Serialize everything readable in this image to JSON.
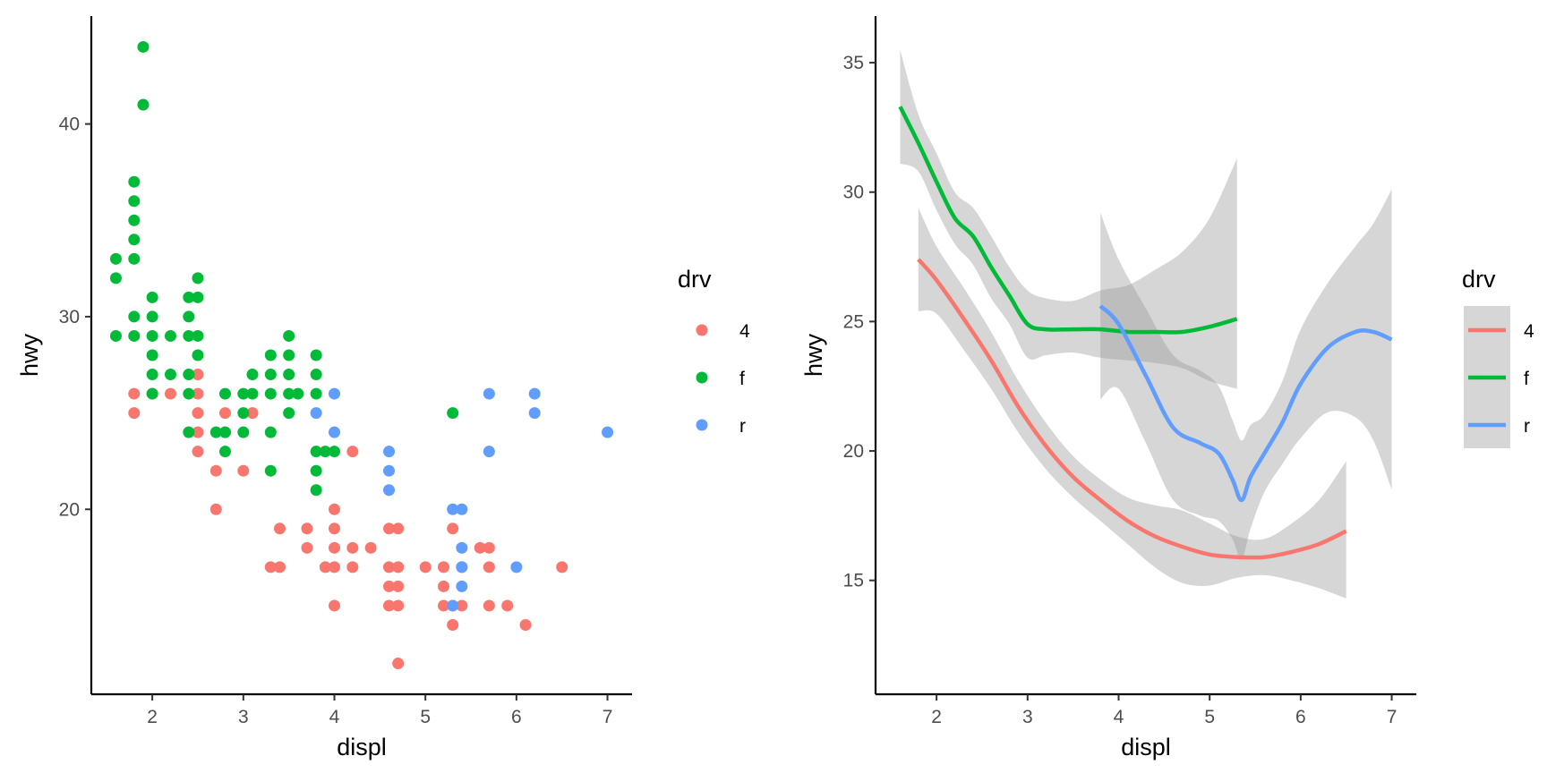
{
  "colors": {
    "4": "#F8766D",
    "f": "#00BA38",
    "r": "#619CFF",
    "band": "#999999"
  },
  "chart_data": [
    {
      "type": "scatter",
      "xlabel": "displ",
      "ylabel": "hwy",
      "xlim": [
        1.33,
        7.27
      ],
      "ylim": [
        10.4,
        45.6
      ],
      "xticks": [
        2,
        3,
        4,
        5,
        6,
        7
      ],
      "yticks": [
        20,
        30,
        40
      ],
      "legend": {
        "title": "drv",
        "placement": "right",
        "entries": [
          "4",
          "f",
          "r"
        ]
      },
      "series": [
        {
          "name": "4",
          "points": [
            [
              1.8,
              26
            ],
            [
              1.8,
              25
            ],
            [
              2.0,
              26
            ],
            [
              2.2,
              26
            ],
            [
              2.5,
              27
            ],
            [
              2.5,
              26
            ],
            [
              2.5,
              25
            ],
            [
              2.5,
              24
            ],
            [
              2.5,
              23
            ],
            [
              2.7,
              22
            ],
            [
              2.7,
              20
            ],
            [
              2.8,
              25
            ],
            [
              2.8,
              24
            ],
            [
              3.0,
              22
            ],
            [
              3.1,
              25
            ],
            [
              3.3,
              17
            ],
            [
              3.4,
              19
            ],
            [
              3.4,
              17
            ],
            [
              3.7,
              19
            ],
            [
              3.7,
              18
            ],
            [
              3.9,
              17
            ],
            [
              4.0,
              20
            ],
            [
              4.0,
              19
            ],
            [
              4.0,
              18
            ],
            [
              4.0,
              17
            ],
            [
              4.0,
              15
            ],
            [
              4.2,
              23
            ],
            [
              4.2,
              18
            ],
            [
              4.2,
              17
            ],
            [
              4.4,
              18
            ],
            [
              4.6,
              19
            ],
            [
              4.6,
              17
            ],
            [
              4.6,
              16
            ],
            [
              4.6,
              15
            ],
            [
              4.7,
              19
            ],
            [
              4.7,
              17
            ],
            [
              4.7,
              16
            ],
            [
              4.7,
              15
            ],
            [
              4.7,
              12
            ],
            [
              5.0,
              17
            ],
            [
              5.2,
              17
            ],
            [
              5.2,
              16
            ],
            [
              5.2,
              15
            ],
            [
              5.3,
              19
            ],
            [
              5.3,
              15
            ],
            [
              5.3,
              14
            ],
            [
              5.4,
              17
            ],
            [
              5.4,
              15
            ],
            [
              5.6,
              18
            ],
            [
              5.7,
              18
            ],
            [
              5.7,
              17
            ],
            [
              5.7,
              15
            ],
            [
              5.9,
              15
            ],
            [
              6.1,
              14
            ],
            [
              6.5,
              17
            ]
          ]
        },
        {
          "name": "f",
          "points": [
            [
              1.6,
              33
            ],
            [
              1.6,
              32
            ],
            [
              1.6,
              29
            ],
            [
              1.8,
              37
            ],
            [
              1.8,
              36
            ],
            [
              1.8,
              35
            ],
            [
              1.8,
              34
            ],
            [
              1.8,
              33
            ],
            [
              1.8,
              30
            ],
            [
              1.8,
              29
            ],
            [
              1.9,
              44
            ],
            [
              1.9,
              41
            ],
            [
              2.0,
              31
            ],
            [
              2.0,
              30
            ],
            [
              2.0,
              29
            ],
            [
              2.0,
              28
            ],
            [
              2.0,
              27
            ],
            [
              2.0,
              26
            ],
            [
              2.2,
              29
            ],
            [
              2.2,
              27
            ],
            [
              2.4,
              31
            ],
            [
              2.4,
              30
            ],
            [
              2.4,
              29
            ],
            [
              2.4,
              27
            ],
            [
              2.4,
              26
            ],
            [
              2.4,
              24
            ],
            [
              2.5,
              32
            ],
            [
              2.5,
              31
            ],
            [
              2.5,
              29
            ],
            [
              2.5,
              28
            ],
            [
              2.7,
              24
            ],
            [
              2.8,
              26
            ],
            [
              2.8,
              24
            ],
            [
              2.8,
              23
            ],
            [
              3.0,
              26
            ],
            [
              3.0,
              25
            ],
            [
              3.0,
              24
            ],
            [
              3.1,
              27
            ],
            [
              3.1,
              26
            ],
            [
              3.3,
              28
            ],
            [
              3.3,
              27
            ],
            [
              3.3,
              26
            ],
            [
              3.3,
              24
            ],
            [
              3.3,
              22
            ],
            [
              3.5,
              29
            ],
            [
              3.5,
              28
            ],
            [
              3.5,
              27
            ],
            [
              3.5,
              26
            ],
            [
              3.5,
              25
            ],
            [
              3.6,
              26
            ],
            [
              3.8,
              28
            ],
            [
              3.8,
              27
            ],
            [
              3.8,
              26
            ],
            [
              3.8,
              23
            ],
            [
              3.8,
              22
            ],
            [
              3.8,
              21
            ],
            [
              3.9,
              23
            ],
            [
              4.0,
              23
            ],
            [
              5.3,
              25
            ]
          ]
        },
        {
          "name": "r",
          "points": [
            [
              3.8,
              25
            ],
            [
              4.0,
              26
            ],
            [
              4.0,
              24
            ],
            [
              4.6,
              23
            ],
            [
              4.6,
              22
            ],
            [
              4.6,
              21
            ],
            [
              5.3,
              20
            ],
            [
              5.3,
              15
            ],
            [
              5.4,
              20
            ],
            [
              5.4,
              18
            ],
            [
              5.4,
              17
            ],
            [
              5.4,
              16
            ],
            [
              5.7,
              26
            ],
            [
              5.7,
              23
            ],
            [
              6.0,
              17
            ],
            [
              6.2,
              26
            ],
            [
              6.2,
              25
            ],
            [
              7.0,
              24
            ]
          ]
        }
      ]
    },
    {
      "type": "line",
      "xlabel": "displ",
      "ylabel": "hwy",
      "xlim": [
        1.33,
        7.27
      ],
      "ylim": [
        10.6,
        36.8
      ],
      "xticks": [
        2,
        3,
        4,
        5,
        6,
        7
      ],
      "yticks": [
        15,
        20,
        25,
        30,
        35
      ],
      "legend": {
        "title": "drv",
        "placement": "right",
        "entries": [
          "4",
          "f",
          "r"
        ]
      },
      "series": [
        {
          "name": "4",
          "x": [
            1.8,
            2.0,
            2.3,
            2.6,
            2.9,
            3.2,
            3.5,
            3.8,
            4.1,
            4.4,
            4.7,
            5.0,
            5.3,
            5.6,
            5.9,
            6.2,
            6.5
          ],
          "y": [
            27.4,
            26.6,
            25.1,
            23.5,
            21.7,
            20.2,
            19.0,
            18.1,
            17.3,
            16.7,
            16.3,
            16.0,
            15.9,
            15.9,
            16.1,
            16.4,
            16.9
          ],
          "lower": [
            25.4,
            25.3,
            23.9,
            22.4,
            20.7,
            19.3,
            18.2,
            17.3,
            16.4,
            15.5,
            14.9,
            14.8,
            15.1,
            15.2,
            15.0,
            14.7,
            14.3
          ],
          "upper": [
            29.4,
            27.9,
            26.3,
            24.6,
            22.7,
            21.1,
            19.8,
            18.9,
            18.2,
            17.9,
            17.7,
            17.2,
            16.7,
            16.6,
            17.2,
            18.1,
            19.6
          ]
        },
        {
          "name": "f",
          "x": [
            1.6,
            1.8,
            2.0,
            2.2,
            2.4,
            2.6,
            2.8,
            3.0,
            3.2,
            3.5,
            3.8,
            4.1,
            4.4,
            4.7,
            5.0,
            5.3
          ],
          "y": [
            33.3,
            31.9,
            30.4,
            29.0,
            28.3,
            27.1,
            26.0,
            24.9,
            24.7,
            24.7,
            24.7,
            24.6,
            24.6,
            24.6,
            24.8,
            25.1
          ],
          "lower": [
            31.1,
            30.8,
            29.3,
            28.0,
            27.2,
            25.9,
            24.9,
            23.6,
            23.7,
            23.8,
            23.6,
            23.5,
            23.4,
            23.2,
            22.7,
            22.4
          ],
          "upper": [
            35.5,
            33.0,
            31.5,
            30.0,
            29.4,
            28.3,
            27.1,
            26.2,
            25.9,
            25.8,
            26.2,
            26.4,
            27.0,
            27.7,
            29.0,
            31.3
          ]
        },
        {
          "name": "r",
          "x": [
            3.8,
            4.0,
            4.3,
            4.6,
            4.9,
            5.1,
            5.25,
            5.35,
            5.45,
            5.6,
            5.8,
            6.0,
            6.3,
            6.6,
            6.8,
            7.0
          ],
          "y": [
            25.6,
            24.9,
            22.9,
            20.9,
            20.3,
            19.9,
            18.9,
            18.1,
            19.0,
            19.9,
            21.1,
            22.6,
            24.0,
            24.6,
            24.6,
            24.3
          ],
          "lower": [
            22.0,
            22.4,
            20.3,
            18.1,
            17.5,
            17.3,
            16.6,
            15.8,
            17.0,
            18.4,
            19.5,
            20.5,
            21.5,
            21.3,
            20.4,
            18.5
          ],
          "upper": [
            29.2,
            27.4,
            25.5,
            23.7,
            23.1,
            22.5,
            21.2,
            20.4,
            21.0,
            21.4,
            22.7,
            24.7,
            26.5,
            27.9,
            28.8,
            30.1
          ]
        }
      ]
    }
  ]
}
